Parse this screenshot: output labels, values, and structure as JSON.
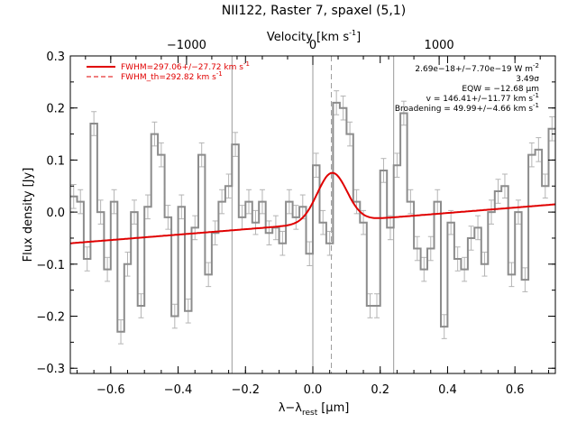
{
  "chart_data": {
    "type": "line",
    "title": "NII122, Raster 7, spaxel (5,1)",
    "xlabel": "λ−λ",
    "xlabel_sub": "rest",
    "xlabel_unit": "[μm]",
    "ylabel": "Flux density [Jy]",
    "top_axis_label": "Velocity [km s",
    "top_axis_label_sup": "-1",
    "top_axis_label_end": "]",
    "xlim": [
      -0.72,
      0.72
    ],
    "ylim": [
      -0.31,
      0.3
    ],
    "x_ticks": [
      -0.6,
      -0.4,
      -0.2,
      0.0,
      0.2,
      0.4,
      0.6
    ],
    "x_tick_labels": [
      "−0.6",
      "−0.4",
      "−0.2",
      "0.0",
      "0.2",
      "0.4",
      "0.6"
    ],
    "y_ticks": [
      -0.3,
      -0.2,
      -0.1,
      0.0,
      0.1,
      0.2,
      0.3
    ],
    "y_tick_labels": [
      "−0.3",
      "−0.2",
      "−0.1",
      "0.0",
      "0.1",
      "0.2",
      "0.3"
    ],
    "top_ticks": [
      -1000,
      0,
      1000
    ],
    "top_tick_labels": [
      "−1000",
      "0",
      "1000"
    ],
    "top_axis_scale_um_per_kms": 0.000375,
    "vertical_lines_solid": [
      -0.24,
      0.0,
      0.24
    ],
    "vertical_line_dashed": 0.055,
    "spectrum_x": [
      -0.72,
      -0.7,
      -0.68,
      -0.66,
      -0.64,
      -0.62,
      -0.6,
      -0.58,
      -0.56,
      -0.54,
      -0.52,
      -0.5,
      -0.48,
      -0.46,
      -0.44,
      -0.42,
      -0.4,
      -0.38,
      -0.36,
      -0.34,
      -0.32,
      -0.3,
      -0.28,
      -0.26,
      -0.24,
      -0.22,
      -0.2,
      -0.18,
      -0.16,
      -0.14,
      -0.12,
      -0.1,
      -0.08,
      -0.06,
      -0.04,
      -0.02,
      0.0,
      0.02,
      0.04,
      0.06,
      0.08,
      0.1,
      0.12,
      0.14,
      0.16,
      0.18,
      0.2,
      0.22,
      0.24,
      0.26,
      0.28,
      0.3,
      0.32,
      0.34,
      0.36,
      0.38,
      0.4,
      0.42,
      0.44,
      0.46,
      0.48,
      0.5,
      0.52,
      0.54,
      0.56,
      0.58,
      0.6,
      0.62,
      0.64,
      0.66,
      0.68,
      0.7
    ],
    "spectrum_y": [
      0.03,
      0.02,
      -0.09,
      0.17,
      0.0,
      -0.11,
      0.02,
      -0.23,
      -0.1,
      0.0,
      -0.18,
      0.01,
      0.15,
      0.11,
      -0.01,
      -0.2,
      0.01,
      -0.19,
      -0.03,
      0.11,
      -0.12,
      -0.04,
      0.02,
      0.05,
      0.13,
      -0.01,
      0.02,
      -0.02,
      0.02,
      -0.04,
      -0.03,
      -0.06,
      0.02,
      -0.01,
      0.01,
      -0.08,
      0.09,
      -0.02,
      -0.06,
      0.21,
      0.2,
      0.15,
      0.02,
      -0.02,
      -0.18,
      -0.18,
      0.08,
      -0.03,
      0.09,
      0.19,
      0.02,
      -0.07,
      -0.11,
      -0.07,
      0.02,
      -0.22,
      -0.02,
      -0.09,
      -0.11,
      -0.05,
      -0.03,
      -0.1,
      0.0,
      0.04,
      0.05,
      -0.12,
      0.0,
      -0.13,
      0.11,
      0.12,
      0.05,
      0.16
    ],
    "spectrum_err": 0.023,
    "fit_baseline": {
      "slope": 0.052,
      "intercept": -0.0225
    },
    "fit_gaussian": {
      "center": 0.057,
      "amplitude": 0.095,
      "sigma": 0.044
    },
    "legend": [
      {
        "label": "FWHM=297.06+/−27.72 km s",
        "sup": "-1",
        "style": "solid"
      },
      {
        "label": "FWHM_th=292.82 km s",
        "sup": "-1",
        "style": "dashed"
      }
    ],
    "annotations": [
      {
        "text": "2.69e−18+/−7.70e−19 W m",
        "sup": "-2"
      },
      {
        "text": "3.49σ",
        "sup": ""
      },
      {
        "text": "EQW = −12.68 μm",
        "sup": ""
      },
      {
        "text": "v = 146.41+/−11.77 km s",
        "sup": "-1"
      },
      {
        "text": "Broadening = 49.99+/−4.66 km s",
        "sup": "-1"
      }
    ],
    "colors": {
      "spectrum": "#8c8c8c",
      "error": "#b4b4b4",
      "fit": "#e00000",
      "axis": "#000000",
      "vlines": "#9a9a9a"
    }
  }
}
